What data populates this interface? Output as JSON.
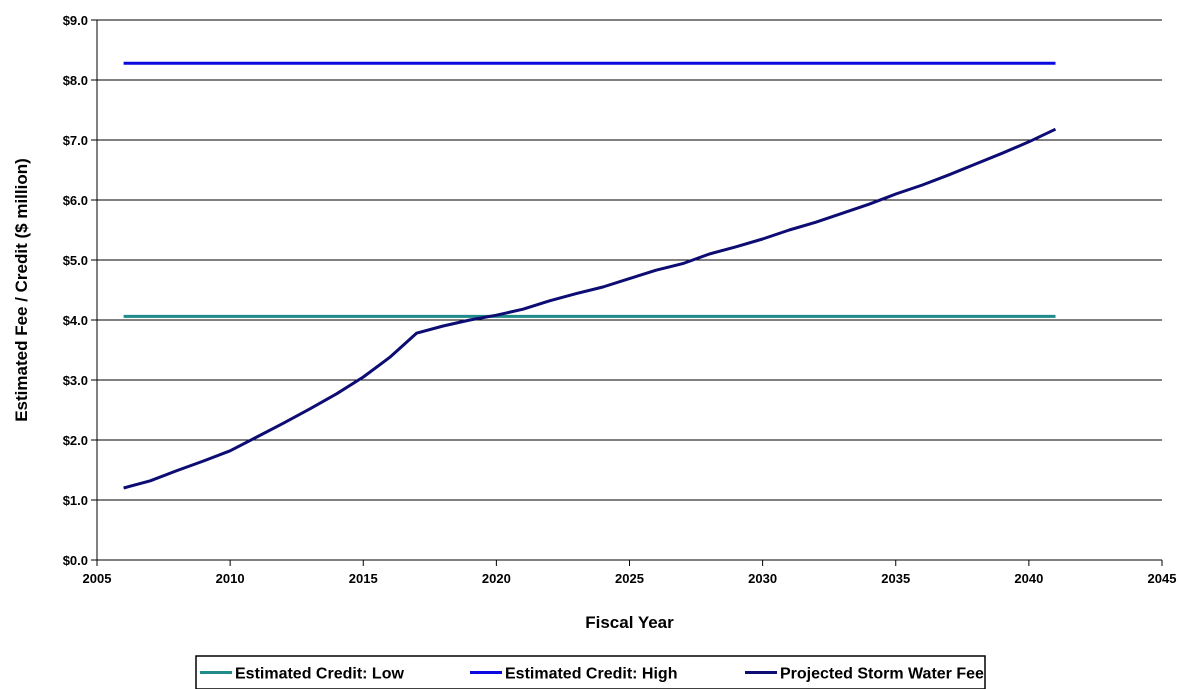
{
  "chart_data": {
    "type": "line",
    "title": "",
    "xlabel": "Fiscal Year",
    "ylabel": "Estimated Fee / Credit ($ million)",
    "xlim": [
      2005,
      2045
    ],
    "ylim": [
      0,
      9
    ],
    "x_ticks": [
      2005,
      2010,
      2015,
      2020,
      2025,
      2030,
      2035,
      2040,
      2045
    ],
    "y_ticks": [
      0,
      1,
      2,
      3,
      4,
      5,
      6,
      7,
      8,
      9
    ],
    "y_tick_labels": [
      "$0.0",
      "$1.0",
      "$2.0",
      "$3.0",
      "$4.0",
      "$5.0",
      "$6.0",
      "$7.0",
      "$8.0",
      "$9.0"
    ],
    "grid": "horizontal",
    "legend_position": "bottom",
    "series": [
      {
        "name": "Estimated Credit: Low",
        "color": "#1f8a8a",
        "x": [
          2006,
          2041
        ],
        "values": [
          4.06,
          4.06
        ]
      },
      {
        "name": "Estimated Credit: High",
        "color": "#0a0ae0",
        "x": [
          2006,
          2041
        ],
        "values": [
          8.28,
          8.28
        ]
      },
      {
        "name": "Projected Storm Water Fee",
        "color": "#0c0c73",
        "x": [
          2006,
          2007,
          2008,
          2009,
          2010,
          2011,
          2012,
          2013,
          2014,
          2015,
          2016,
          2017,
          2018,
          2019,
          2020,
          2021,
          2022,
          2023,
          2024,
          2025,
          2026,
          2027,
          2028,
          2029,
          2030,
          2031,
          2032,
          2033,
          2034,
          2035,
          2036,
          2037,
          2038,
          2039,
          2040,
          2041
        ],
        "values": [
          1.2,
          1.32,
          1.49,
          1.65,
          1.82,
          2.05,
          2.28,
          2.52,
          2.77,
          3.05,
          3.38,
          3.78,
          3.9,
          4.0,
          4.08,
          4.18,
          4.32,
          4.44,
          4.55,
          4.69,
          4.83,
          4.94,
          5.1,
          5.22,
          5.35,
          5.5,
          5.63,
          5.78,
          5.93,
          6.1,
          6.25,
          6.42,
          6.6,
          6.78,
          6.97,
          7.18
        ]
      }
    ]
  }
}
